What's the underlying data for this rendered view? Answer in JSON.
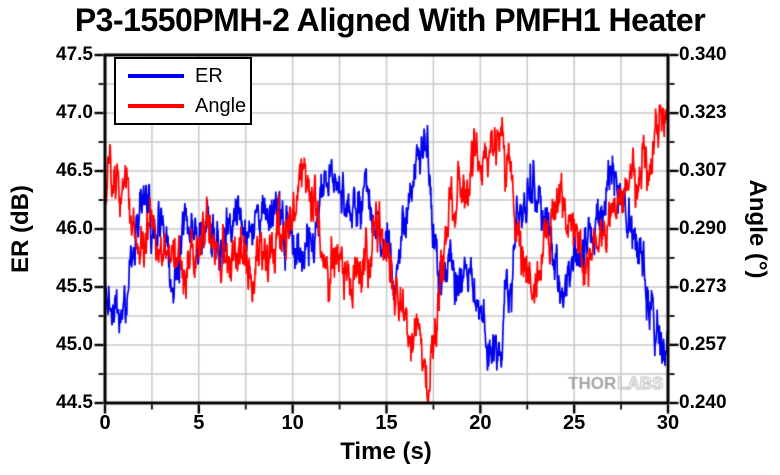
{
  "title": "P3-1550PMH-2 Aligned With PMFH1 Heater",
  "watermark": {
    "part1": "THOR",
    "part2": "LABS",
    "solid_color": "#a6a6a6",
    "outline_color": "#bdbdbd"
  },
  "legend": {
    "items": [
      {
        "label": "ER",
        "color": "#0000ee"
      },
      {
        "label": "Angle",
        "color": "#fe0000"
      }
    ]
  },
  "chart_data": {
    "type": "line",
    "title": "P3-1550PMH-2 Aligned With PMFH1 Heater",
    "xlabel": "Time (s)",
    "ylabel_left": "ER (dB)",
    "ylabel_right": "Angle (°)",
    "legend_position": "top-left",
    "axis_color": "#000000",
    "grid": {
      "on": true,
      "color": "#c9c9c9",
      "x_step": 2.5,
      "y_step": 0.25
    },
    "x_range": [
      0,
      30
    ],
    "y_left_range": [
      44.5,
      47.5
    ],
    "y_right_range": [
      0.24,
      0.34
    ],
    "x_ticks": {
      "values": [
        0,
        5,
        10,
        15,
        20,
        25,
        30
      ],
      "labels": [
        "0",
        "5",
        "10",
        "15",
        "20",
        "25",
        "30"
      ]
    },
    "x_minor_ticks": [
      2.5,
      7.5,
      12.5,
      17.5,
      22.5,
      27.5
    ],
    "y_left_ticks": {
      "values": [
        47.5,
        47.0,
        46.5,
        46.0,
        45.5,
        45.0,
        44.5
      ],
      "labels": [
        "47.5",
        "47.0",
        "46.5",
        "46.0",
        "45.5",
        "45.0",
        "44.5"
      ]
    },
    "y_left_minor_ticks": [
      44.75,
      45.25,
      45.75,
      46.25,
      46.75,
      47.25
    ],
    "y_right_ticks": {
      "values": [
        0.34,
        0.3233,
        0.3067,
        0.29,
        0.2733,
        0.2567,
        0.24
      ],
      "labels": [
        "0.340",
        "0.323",
        "0.307",
        "0.290",
        "0.273",
        "0.257",
        "0.240"
      ]
    },
    "y_right_minor_ticks": [
      0.2483,
      0.265,
      0.2817,
      0.2983,
      0.315,
      0.3317
    ],
    "sample_dt": 0.02,
    "series": [
      {
        "name": "ER",
        "axis": "left",
        "units": "dB",
        "color": "#0000ee",
        "seed": 1337,
        "noise_slow": 0.135,
        "noise_fast": 0.085,
        "trend_t_step": 0.5,
        "trend": [
          45.6,
          45.32,
          45.38,
          45.85,
          46.1,
          46.15,
          46.08,
          45.95,
          46.18,
          46.22,
          46.08,
          46.0,
          46.1,
          46.18,
          46.08,
          46.0,
          46.15,
          46.25,
          46.28,
          46.12,
          46.0,
          45.92,
          46.05,
          46.2,
          46.38,
          46.5,
          46.3,
          46.2,
          46.32,
          46.22,
          46.0,
          45.9,
          46.18,
          46.6,
          46.62,
          46.1,
          45.72,
          45.6,
          45.52,
          45.55,
          45.28,
          44.98,
          45.0,
          45.55,
          46.1,
          46.32,
          46.45,
          46.1,
          45.7,
          45.48,
          45.52,
          45.72,
          45.92,
          46.1,
          46.25,
          46.35,
          46.28,
          45.92,
          45.38,
          44.98,
          45.1
        ]
      },
      {
        "name": "Angle",
        "axis": "right",
        "units": "deg",
        "color": "#fe0000",
        "seed": 4242,
        "noise_slow": 0.0046,
        "noise_fast": 0.003,
        "trend_t_step": 0.5,
        "trend": [
          0.3,
          0.308,
          0.305,
          0.293,
          0.285,
          0.283,
          0.281,
          0.279,
          0.283,
          0.28,
          0.283,
          0.285,
          0.282,
          0.281,
          0.284,
          0.285,
          0.283,
          0.281,
          0.284,
          0.287,
          0.295,
          0.303,
          0.295,
          0.285,
          0.278,
          0.274,
          0.273,
          0.276,
          0.285,
          0.29,
          0.285,
          0.275,
          0.265,
          0.259,
          0.257,
          0.267,
          0.283,
          0.297,
          0.3,
          0.303,
          0.31,
          0.318,
          0.322,
          0.308,
          0.288,
          0.28,
          0.278,
          0.283,
          0.292,
          0.295,
          0.288,
          0.283,
          0.281,
          0.287,
          0.293,
          0.297,
          0.3,
          0.305,
          0.312,
          0.32,
          0.328
        ]
      }
    ]
  }
}
